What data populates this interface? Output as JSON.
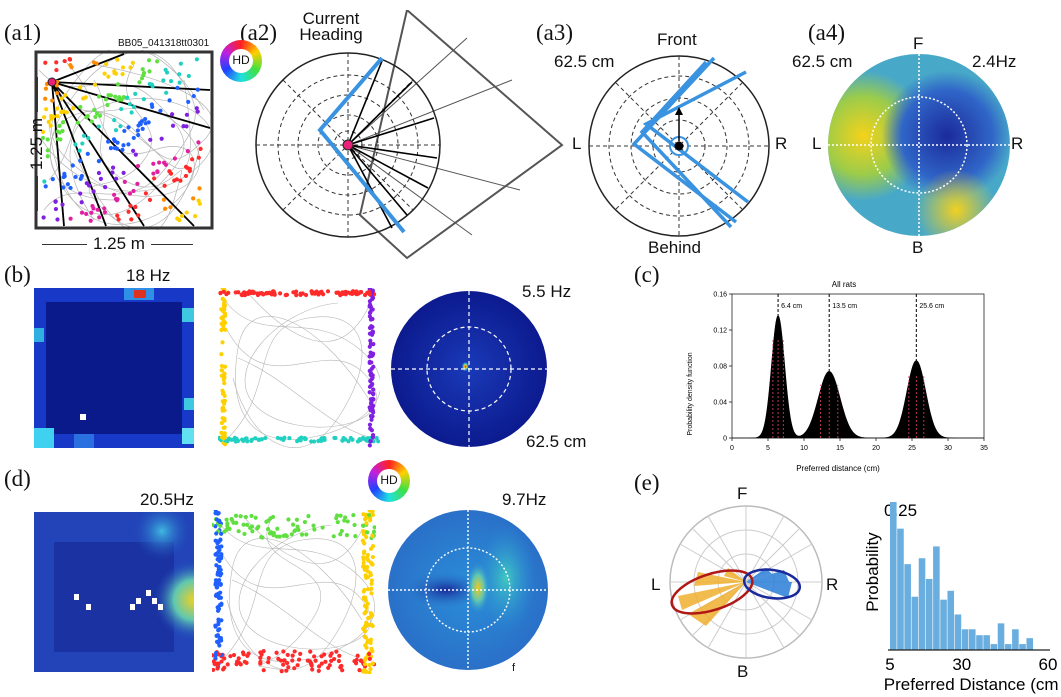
{
  "panels": {
    "a1": {
      "label": "(a1)",
      "cell_id": "BB05_041318tt0301",
      "width_label": "1.25 m",
      "height_label": "1.25 m",
      "hd_badge": "HD"
    },
    "a2": {
      "label": "(a2)",
      "title": "Current\nHeading"
    },
    "a3": {
      "label": "(a3)",
      "distance": "62.5 cm",
      "front": "Front",
      "behind": "Behind",
      "left": "L",
      "right": "R"
    },
    "a4": {
      "label": "(a4)",
      "distance": "62.5 cm",
      "rate": "2.4Hz",
      "front": "F",
      "back": "B",
      "left": "L",
      "right": "R"
    },
    "b": {
      "label": "(b)",
      "rate": "18 Hz",
      "polar_rate": "5.5 Hz",
      "polar_distance": "62.5 cm"
    },
    "c": {
      "label": "(c)"
    },
    "d": {
      "label": "(d)",
      "rate": "20.5Hz",
      "polar_rate": "9.7Hz",
      "hd_badge": "HD",
      "stray": "f"
    },
    "e": {
      "label": "(e)",
      "front": "F",
      "back": "B",
      "left": "L",
      "right": "R",
      "hist_ylabel": "Probability",
      "hist_xlabel": "Preferred Distance (cm)",
      "hist_ytick": "0.25",
      "hist_xticks": [
        "5",
        "30",
        "60"
      ]
    }
  },
  "colors": {
    "trajectory": "#b5b5b5",
    "highlight_line": "#3a93e0",
    "black": "#000000",
    "density_peak_marker": "#e0407a",
    "histogram_bar": "#6aaee0",
    "ellipse_red": "#b01818",
    "ellipse_blue": "#1a2a9a"
  },
  "chart_data": [
    {
      "type": "area",
      "title": "All rats",
      "xlabel": "Preferred distance (cm)",
      "ylabel": "Probability density function",
      "xlim": [
        0,
        35
      ],
      "ylim": [
        0,
        0.16
      ],
      "xticks": [
        0,
        5,
        10,
        15,
        20,
        25,
        30,
        35
      ],
      "yticks": [
        0,
        0.04,
        0.08,
        0.12,
        0.16
      ],
      "peaks": [
        {
          "label": "6.4 cm",
          "x": 6.4,
          "height": 0.136,
          "sigma": 0.9
        },
        {
          "label": "13.5 cm",
          "x": 13.5,
          "height": 0.074,
          "sigma": 1.5
        },
        {
          "label": "25.6 cm",
          "x": 25.6,
          "height": 0.086,
          "sigma": 1.3
        }
      ]
    },
    {
      "type": "bar",
      "xlabel": "Preferred Distance (cm)",
      "ylabel": "Probability",
      "xlim": [
        5,
        60
      ],
      "ylim": [
        0,
        0.25
      ],
      "bin_edges_start": 5,
      "bin_width": 2.5,
      "values": [
        0.25,
        0.205,
        0.145,
        0.09,
        0.155,
        0.12,
        0.175,
        0.085,
        0.1,
        0.06,
        0.035,
        0.035,
        0.025,
        0.025,
        0.01,
        0.045,
        0.01,
        0.035,
        0.01,
        0.02
      ]
    }
  ]
}
